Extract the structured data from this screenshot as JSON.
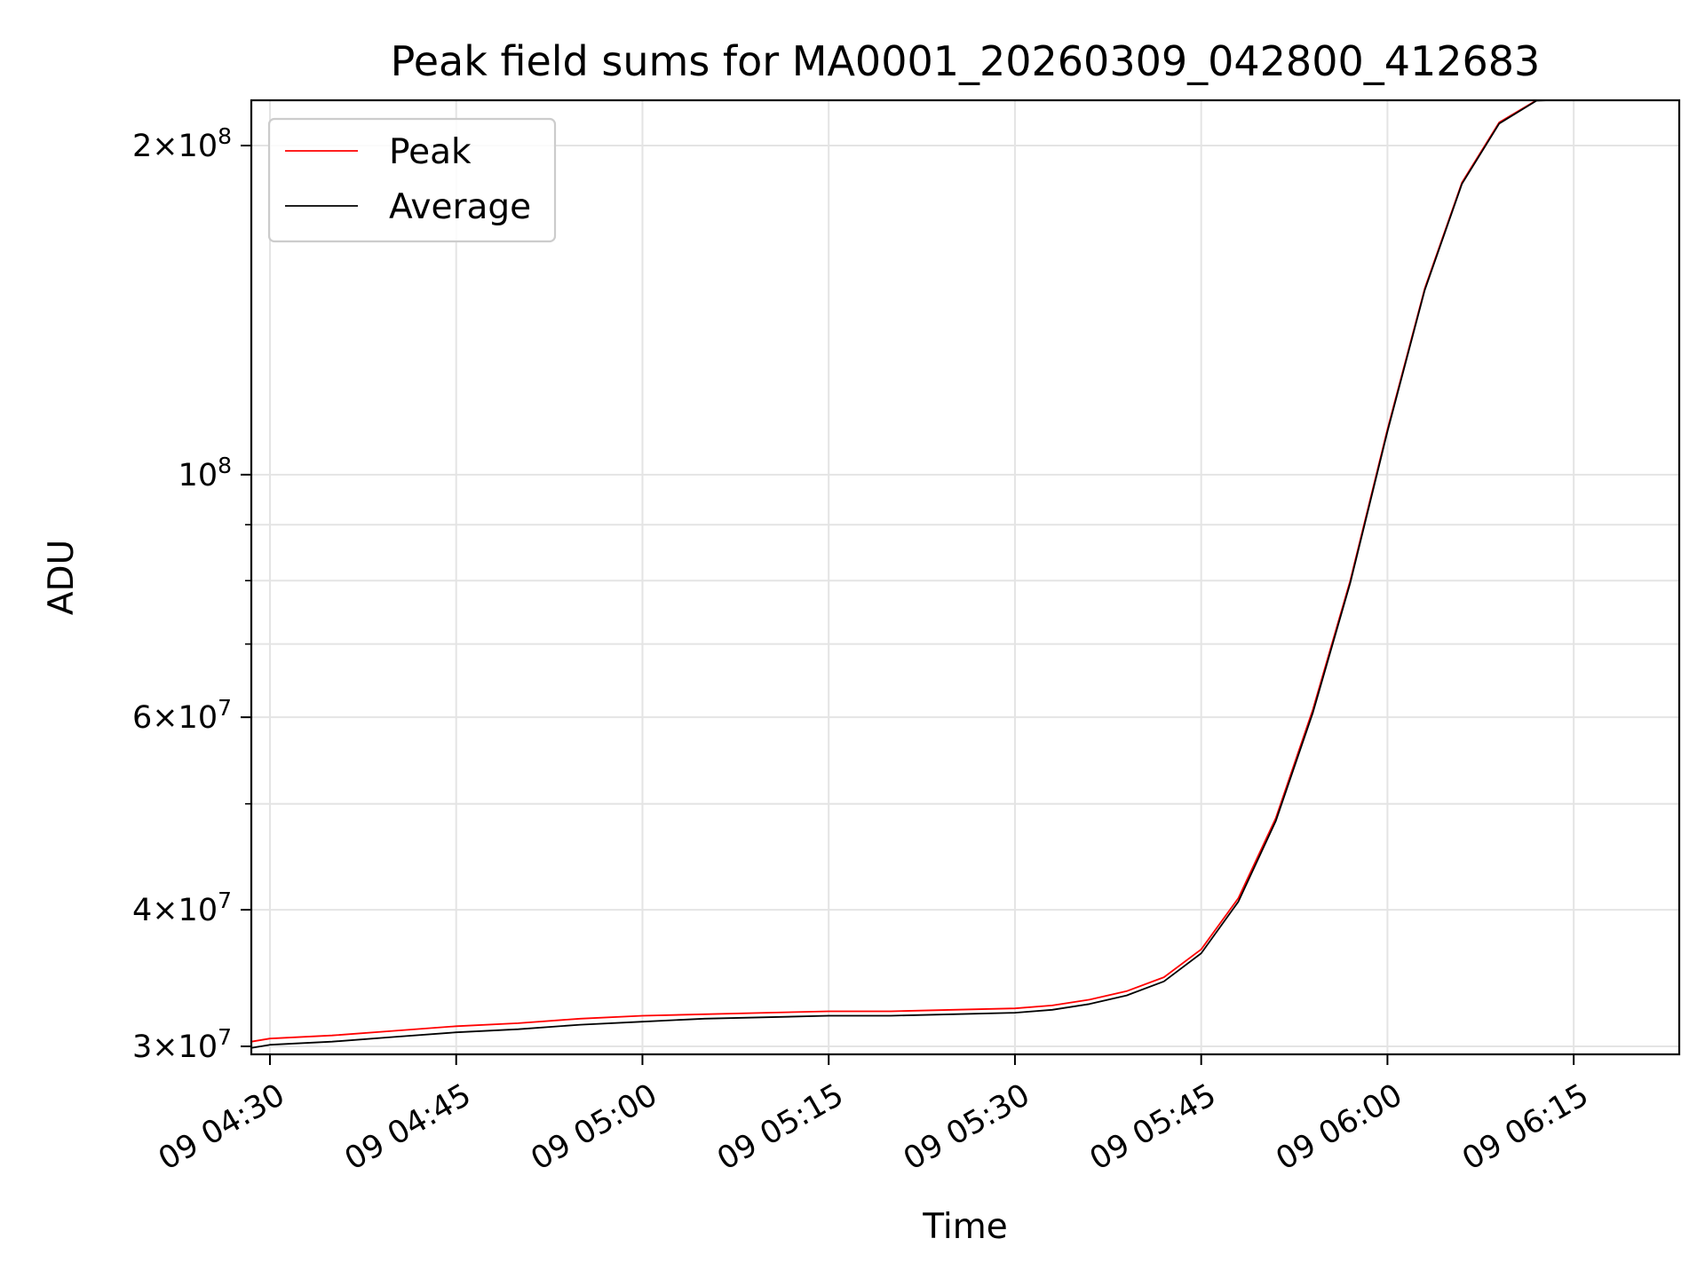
{
  "chart_data": {
    "type": "line",
    "title": "Peak field sums for MA0001_20260309_042800_412683",
    "xlabel": "Time",
    "ylabel": "ADU",
    "y_scale": "log",
    "grid": true,
    "legend_position": "upper-left",
    "xlim": [
      "2026-03-09 04:28:30",
      "2026-03-09 06:23:30"
    ],
    "ylim": [
      29500000,
      220000000
    ],
    "x_ticks": [
      "2026-03-09 04:30",
      "2026-03-09 04:45",
      "2026-03-09 05:00",
      "2026-03-09 05:15",
      "2026-03-09 05:30",
      "2026-03-09 05:45",
      "2026-03-09 06:00",
      "2026-03-09 06:15"
    ],
    "x_tick_labels": [
      "09 04:30",
      "09 04:45",
      "09 05:00",
      "09 05:15",
      "09 05:30",
      "09 05:45",
      "09 06:00",
      "09 06:15"
    ],
    "y_ticks": [
      {
        "value": 30000000,
        "mantissa": "3",
        "exponent": "7"
      },
      {
        "value": 40000000,
        "mantissa": "4",
        "exponent": "7"
      },
      {
        "value": 60000000,
        "mantissa": "6",
        "exponent": "7"
      },
      {
        "value": 100000000,
        "mantissa": "",
        "exponent": "8"
      },
      {
        "value": 200000000,
        "mantissa": "2",
        "exponent": "8"
      }
    ],
    "y_minor_ticks": [
      50000000,
      70000000,
      80000000,
      90000000
    ],
    "x": [
      "2026-03-09 04:28:30",
      "2026-03-09 04:30",
      "2026-03-09 04:35",
      "2026-03-09 04:40",
      "2026-03-09 04:45",
      "2026-03-09 04:50",
      "2026-03-09 04:55",
      "2026-03-09 05:00",
      "2026-03-09 05:05",
      "2026-03-09 05:10",
      "2026-03-09 05:15",
      "2026-03-09 05:20",
      "2026-03-09 05:25",
      "2026-03-09 05:30",
      "2026-03-09 05:33",
      "2026-03-09 05:36",
      "2026-03-09 05:39",
      "2026-03-09 05:42",
      "2026-03-09 05:45",
      "2026-03-09 05:48",
      "2026-03-09 05:51",
      "2026-03-09 05:54",
      "2026-03-09 05:57",
      "2026-03-09 06:00",
      "2026-03-09 06:03",
      "2026-03-09 06:06",
      "2026-03-09 06:09",
      "2026-03-09 06:12",
      "2026-03-09 06:13"
    ],
    "series": [
      {
        "name": "Peak",
        "color": "#ff0000",
        "values": [
          30300000,
          30500000,
          30700000,
          31000000,
          31300000,
          31500000,
          31800000,
          32000000,
          32100000,
          32200000,
          32300000,
          32300000,
          32400000,
          32500000,
          32700000,
          33100000,
          33700000,
          34700000,
          36800000,
          41000000,
          48500000,
          61000000,
          80000000,
          110000000,
          148000000,
          185000000,
          210000000,
          220000000,
          220000000
        ]
      },
      {
        "name": "Average",
        "color": "#000000",
        "values": [
          29900000,
          30100000,
          30300000,
          30600000,
          30900000,
          31100000,
          31400000,
          31600000,
          31800000,
          31900000,
          32000000,
          32000000,
          32100000,
          32200000,
          32400000,
          32800000,
          33400000,
          34400000,
          36500000,
          40700000,
          48200000,
          60600000,
          79600000,
          109500000,
          147500000,
          184500000,
          209500000,
          219800000,
          220000000
        ]
      }
    ]
  }
}
